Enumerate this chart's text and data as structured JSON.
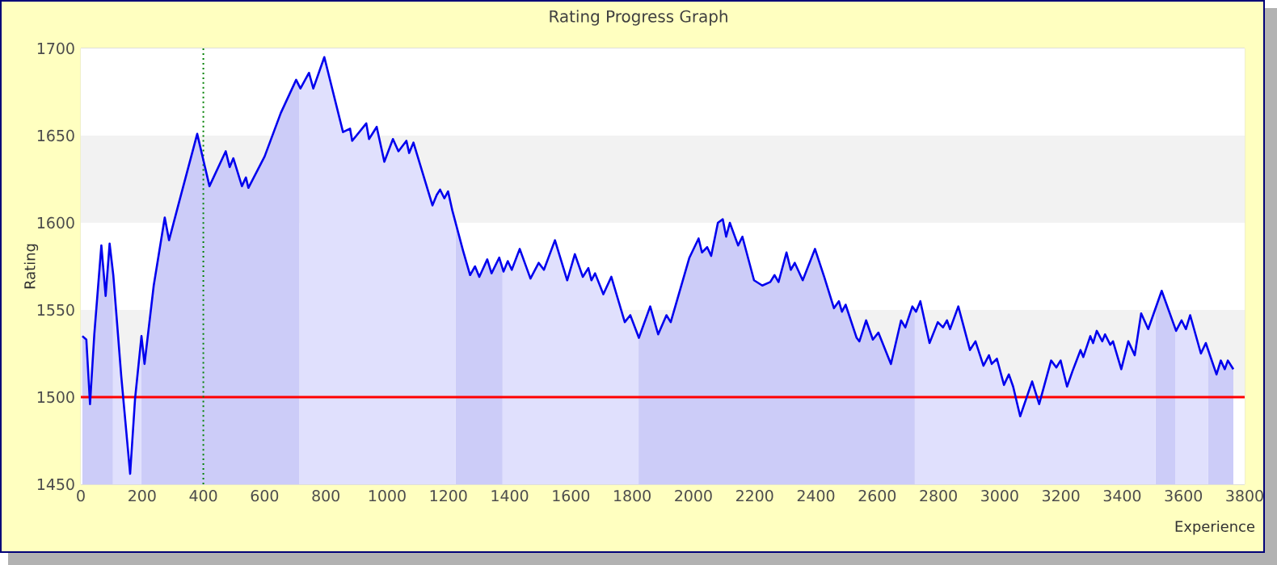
{
  "chart_data": {
    "type": "area",
    "title": "Rating Progress Graph",
    "xlabel": "Experience",
    "ylabel": "Rating",
    "xlim": [
      0,
      3800
    ],
    "xticks": [
      0,
      200,
      400,
      600,
      800,
      1000,
      1200,
      1400,
      1600,
      1800,
      2000,
      2200,
      2400,
      2600,
      2800,
      3000,
      3200,
      3400,
      3600,
      3800
    ],
    "ylim": [
      1450,
      1700
    ],
    "yticks": [
      1450,
      1500,
      1550,
      1600,
      1650,
      1700
    ],
    "grid": "y",
    "ref_lines": [
      {
        "axis": "y",
        "value": 1500,
        "color": "#ff0000",
        "line_style": "solid"
      },
      {
        "axis": "x",
        "value": 400,
        "color": "#008000",
        "line_style": "dotted"
      }
    ],
    "bands": [
      {
        "axis": "x",
        "from": 0,
        "to": 105,
        "color": "#ccccf8"
      },
      {
        "axis": "x",
        "from": 197,
        "to": 714,
        "color": "#ccccf8"
      },
      {
        "axis": "x",
        "from": 1224,
        "to": 1377,
        "color": "#ccccf8"
      },
      {
        "axis": "x",
        "from": 1821,
        "to": 2723,
        "color": "#ccccf8"
      },
      {
        "axis": "x",
        "from": 3509,
        "to": 3573,
        "color": "#ccccf8"
      },
      {
        "axis": "x",
        "from": 3680,
        "to": 3763,
        "color": "#ccccf8"
      }
    ],
    "series": [
      {
        "color": "#0000ee",
        "x": [
          5,
          18,
          30,
          44,
          67,
          81,
          94,
          106,
          132,
          161,
          177,
          198,
          208,
          238,
          274,
          288,
          318,
          380,
          420,
          473,
          486,
          498,
          526,
          539,
          547,
          600,
          653,
          703,
          717,
          745,
          759,
          795,
          856,
          879,
          886,
          932,
          941,
          966,
          991,
          1019,
          1037,
          1063,
          1072,
          1086,
          1148,
          1162,
          1173,
          1187,
          1199,
          1213,
          1248,
          1271,
          1287,
          1301,
          1327,
          1341,
          1366,
          1380,
          1394,
          1407,
          1433,
          1468,
          1495,
          1512,
          1548,
          1588,
          1613,
          1639,
          1657,
          1667,
          1679,
          1706,
          1732,
          1776,
          1794,
          1822,
          1859,
          1885,
          1912,
          1926,
          1987,
          2017,
          2028,
          2045,
          2058,
          2080,
          2096,
          2107,
          2119,
          2146,
          2160,
          2198,
          2225,
          2251,
          2265,
          2278,
          2304,
          2318,
          2331,
          2357,
          2397,
          2427,
          2459,
          2475,
          2485,
          2497,
          2533,
          2542,
          2564,
          2586,
          2604,
          2645,
          2678,
          2692,
          2715,
          2727,
          2741,
          2771,
          2798,
          2815,
          2828,
          2838,
          2865,
          2903,
          2921,
          2947,
          2965,
          2974,
          2991,
          3014,
          3030,
          3044,
          3067,
          3106,
          3129,
          3168,
          3185,
          3199,
          3220,
          3238,
          3264,
          3273,
          3296,
          3305,
          3317,
          3335,
          3344,
          3361,
          3370,
          3397,
          3420,
          3441,
          3462,
          3485,
          3529,
          3576,
          3594,
          3608,
          3622,
          3657,
          3673,
          3708,
          3722,
          3735,
          3745,
          3763
        ],
        "values": [
          1535,
          1533,
          1496,
          1536,
          1587,
          1558,
          1588,
          1570,
          1512,
          1456,
          1499,
          1535,
          1519,
          1564,
          1603,
          1590,
          1610,
          1651,
          1621,
          1641,
          1632,
          1637,
          1621,
          1626,
          1620,
          1638,
          1663,
          1682,
          1677,
          1686,
          1677,
          1695,
          1652,
          1654,
          1647,
          1657,
          1648,
          1655,
          1635,
          1648,
          1641,
          1647,
          1640,
          1646,
          1610,
          1616,
          1619,
          1614,
          1618,
          1607,
          1584,
          1570,
          1575,
          1569,
          1579,
          1571,
          1580,
          1572,
          1578,
          1573,
          1585,
          1568,
          1577,
          1573,
          1590,
          1567,
          1582,
          1569,
          1574,
          1567,
          1571,
          1559,
          1569,
          1543,
          1547,
          1534,
          1552,
          1536,
          1547,
          1543,
          1580,
          1591,
          1583,
          1586,
          1581,
          1600,
          1602,
          1592,
          1600,
          1587,
          1592,
          1567,
          1564,
          1566,
          1570,
          1566,
          1583,
          1573,
          1577,
          1567,
          1585,
          1569,
          1551,
          1555,
          1549,
          1553,
          1534,
          1532,
          1544,
          1533,
          1537,
          1519,
          1544,
          1540,
          1552,
          1549,
          1555,
          1531,
          1543,
          1540,
          1544,
          1539,
          1552,
          1527,
          1532,
          1518,
          1524,
          1519,
          1522,
          1507,
          1513,
          1506,
          1489,
          1509,
          1496,
          1521,
          1517,
          1521,
          1506,
          1515,
          1527,
          1523,
          1535,
          1531,
          1538,
          1532,
          1536,
          1530,
          1532,
          1516,
          1532,
          1524,
          1548,
          1539,
          1561,
          1538,
          1544,
          1539,
          1547,
          1525,
          1531,
          1513,
          1521,
          1516,
          1521,
          1516
        ]
      }
    ]
  }
}
